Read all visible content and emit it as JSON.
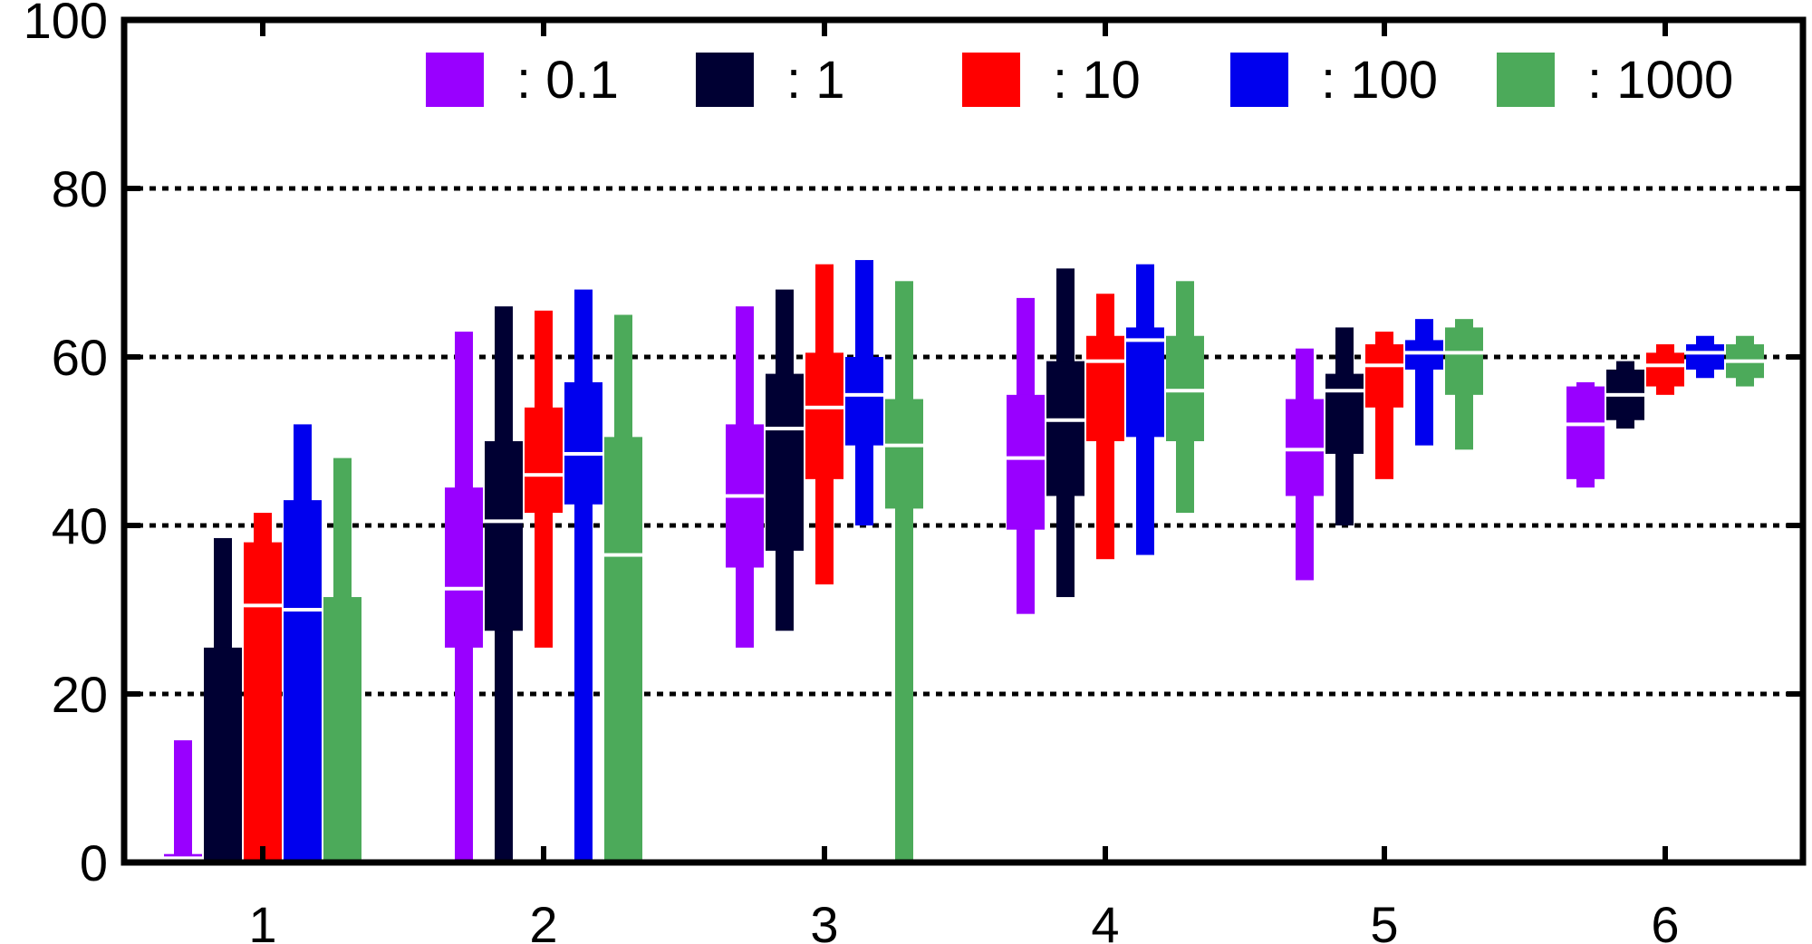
{
  "chart_data": {
    "type": "boxplot",
    "title": "",
    "xlabel": "",
    "ylabel": "",
    "ylim": [
      0,
      100
    ],
    "yticks": [
      0,
      20,
      40,
      60,
      80,
      100
    ],
    "categories": [
      "1",
      "2",
      "3",
      "4",
      "5",
      "6"
    ],
    "grid": "horizontal-dotted",
    "legend_position": "top",
    "series": [
      {
        "name": ": 0.1",
        "color": "#9900ff",
        "boxes": [
          {
            "whislo": 0,
            "q1": 0,
            "med": 0.5,
            "q3": 1,
            "whishi": 14.5
          },
          {
            "whislo": 0,
            "q1": 25.5,
            "med": 32.5,
            "q3": 44.5,
            "whishi": 63
          },
          {
            "whislo": 25.5,
            "q1": 35,
            "med": 43.5,
            "q3": 52,
            "whishi": 66
          },
          {
            "whislo": 29.5,
            "q1": 39.5,
            "med": 48,
            "q3": 55.5,
            "whishi": 67
          },
          {
            "whislo": 33.5,
            "q1": 43.5,
            "med": 49,
            "q3": 55,
            "whishi": 61
          },
          {
            "whislo": 44.5,
            "q1": 45.5,
            "med": 52,
            "q3": 56.5,
            "whishi": 57
          }
        ]
      },
      {
        "name": ": 1",
        "color": "#000033",
        "boxes": [
          {
            "whislo": 0,
            "q1": 0,
            "med": 0,
            "q3": 25.5,
            "whishi": 38.5
          },
          {
            "whislo": 0,
            "q1": 27.5,
            "med": 40.5,
            "q3": 50,
            "whishi": 66
          },
          {
            "whislo": 27.5,
            "q1": 37,
            "med": 51.5,
            "q3": 58,
            "whishi": 68
          },
          {
            "whislo": 31.5,
            "q1": 43.5,
            "med": 52.5,
            "q3": 59.5,
            "whishi": 70.5
          },
          {
            "whislo": 40,
            "q1": 48.5,
            "med": 56,
            "q3": 58,
            "whishi": 63.5
          },
          {
            "whislo": 51.5,
            "q1": 52.5,
            "med": 55.5,
            "q3": 58.5,
            "whishi": 59.5
          }
        ]
      },
      {
        "name": ": 10",
        "color": "#ff0000",
        "boxes": [
          {
            "whislo": 0,
            "q1": 0,
            "med": 30.5,
            "q3": 38,
            "whishi": 41.5
          },
          {
            "whislo": 25.5,
            "q1": 41.5,
            "med": 46,
            "q3": 54,
            "whishi": 65.5
          },
          {
            "whislo": 33,
            "q1": 45.5,
            "med": 54,
            "q3": 60.5,
            "whishi": 71
          },
          {
            "whislo": 36,
            "q1": 50,
            "med": 59.5,
            "q3": 62.5,
            "whishi": 67.5
          },
          {
            "whislo": 45.5,
            "q1": 54,
            "med": 59,
            "q3": 61.5,
            "whishi": 63
          },
          {
            "whislo": 55.5,
            "q1": 56.5,
            "med": 59,
            "q3": 60.5,
            "whishi": 61.5
          }
        ]
      },
      {
        "name": ": 100",
        "color": "#0000ee",
        "boxes": [
          {
            "whislo": 0,
            "q1": 0,
            "med": 30,
            "q3": 43,
            "whishi": 52
          },
          {
            "whislo": 0,
            "q1": 42.5,
            "med": 48.5,
            "q3": 57,
            "whishi": 68
          },
          {
            "whislo": 40,
            "q1": 49.5,
            "med": 55.5,
            "q3": 60,
            "whishi": 71.5
          },
          {
            "whislo": 36.5,
            "q1": 50.5,
            "med": 62,
            "q3": 63.5,
            "whishi": 71
          },
          {
            "whislo": 49.5,
            "q1": 58.5,
            "med": 60.5,
            "q3": 62,
            "whishi": 64.5
          },
          {
            "whislo": 57.5,
            "q1": 58.5,
            "med": 60.5,
            "q3": 61.5,
            "whishi": 62.5
          }
        ]
      },
      {
        "name": ": 1000",
        "color": "#4caa5a",
        "boxes": [
          {
            "whislo": 0,
            "q1": 0,
            "med": 0,
            "q3": 31.5,
            "whishi": 48
          },
          {
            "whislo": 0,
            "q1": 0,
            "med": 36.5,
            "q3": 50.5,
            "whishi": 65
          },
          {
            "whislo": 0,
            "q1": 42,
            "med": 49.5,
            "q3": 55,
            "whishi": 69
          },
          {
            "whislo": 41.5,
            "q1": 50,
            "med": 56,
            "q3": 62.5,
            "whishi": 69
          },
          {
            "whislo": 49,
            "q1": 55.5,
            "med": 60.5,
            "q3": 63.5,
            "whishi": 64.5
          },
          {
            "whislo": 56.5,
            "q1": 57.5,
            "med": 59.5,
            "q3": 61.5,
            "whishi": 62.5
          }
        ]
      }
    ]
  }
}
